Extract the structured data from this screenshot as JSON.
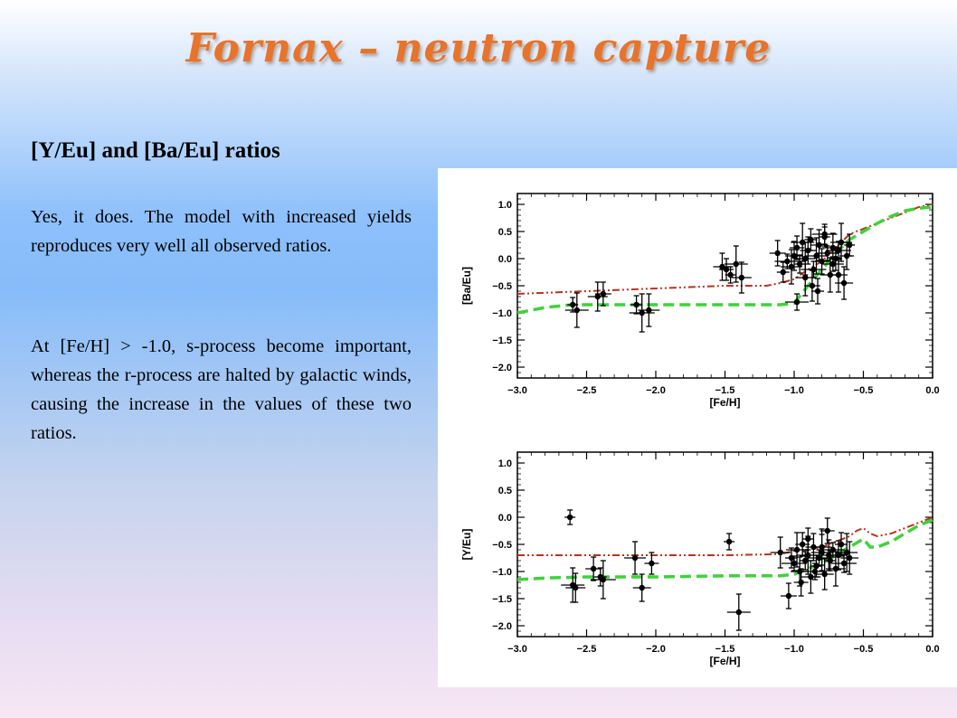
{
  "slide": {
    "title": "Fornax – neutron capture",
    "subtitle": "[Y/Eu] and [Ba/Eu] ratios",
    "paragraph_1": "Yes, it does. The model with increased yields reproduces very well all observed ratios.",
    "paragraph_2": "At [Fe/H] > -1.0, s-process become important, whereas the r-process are halted by galactic winds, causing the increase in the values of these two ratios."
  },
  "colors": {
    "title": "#e8732a",
    "model_red": "#c0301a",
    "model_green": "#3fd23a",
    "points": "#000000"
  },
  "chart_data": [
    {
      "type": "scatter",
      "xlabel": "[Fe/H]",
      "ylabel": "[Ba/Eu]",
      "xlim": [
        -3.0,
        0.0
      ],
      "ylim": [
        -2.2,
        1.2
      ],
      "xticks": [
        "−3.0",
        "−2.5",
        "−2.0",
        "−1.5",
        "−1.0",
        "−0.5",
        "0.0"
      ],
      "yticks": [
        "1.0",
        "0.5",
        "0.0",
        "−0.5",
        "−1.0",
        "−1.5",
        "−2.0"
      ],
      "ytick_values": [
        1.0,
        0.5,
        0.0,
        -0.5,
        -1.0,
        -1.5,
        -2.0
      ],
      "series": [
        {
          "style": "dash-dot",
          "color": "#c0301a",
          "x": [
            -3.0,
            -2.5,
            -2.0,
            -1.5,
            -1.2,
            -1.1,
            -1.0,
            -0.9,
            -0.8,
            -0.7,
            -0.6,
            -0.5,
            -0.4,
            -0.3,
            -0.2,
            -0.1,
            0.0
          ],
          "y": [
            -0.65,
            -0.6,
            -0.55,
            -0.5,
            -0.5,
            -0.45,
            -0.38,
            -0.2,
            -0.05,
            0.2,
            0.45,
            0.55,
            0.65,
            0.75,
            0.85,
            0.95,
            1.0
          ]
        },
        {
          "style": "dashed",
          "color": "#3fd23a",
          "x": [
            -3.0,
            -2.9,
            -2.8,
            -2.6,
            -2.0,
            -1.5,
            -1.1,
            -1.0,
            -0.9,
            -0.8,
            -0.7,
            -0.6,
            -0.5,
            -0.4,
            -0.3,
            -0.2,
            -0.1,
            0.0
          ],
          "y": [
            -1.0,
            -0.95,
            -0.9,
            -0.85,
            -0.85,
            -0.85,
            -0.85,
            -0.82,
            -0.5,
            -0.2,
            0.1,
            0.35,
            0.5,
            0.65,
            0.78,
            0.88,
            0.93,
            0.95
          ]
        },
        {
          "style": "points",
          "color": "#000000",
          "x": [
            -2.6,
            -2.57,
            -2.42,
            -2.38,
            -2.14,
            -2.1,
            -2.05,
            -1.52,
            -1.49,
            -1.46,
            -1.42,
            -1.38,
            -1.12,
            -1.08,
            -1.05,
            -1.02,
            -1.0,
            -0.98,
            -0.96,
            -0.94,
            -0.92,
            -0.9,
            -0.88,
            -0.86,
            -0.84,
            -0.82,
            -0.8,
            -0.78,
            -0.76,
            -0.74,
            -0.72,
            -0.7,
            -0.68,
            -0.66,
            -0.64,
            -0.62,
            -0.6,
            -0.98,
            -0.92,
            -0.87,
            -0.83,
            -0.78,
            -0.72,
            -0.68
          ],
          "y": [
            -0.85,
            -0.95,
            -0.7,
            -0.65,
            -0.85,
            -1.0,
            -0.95,
            -0.15,
            -0.2,
            -0.3,
            -0.1,
            -0.35,
            0.1,
            -0.25,
            -0.05,
            -0.15,
            0.05,
            0.2,
            -0.1,
            0.3,
            0.0,
            0.15,
            0.35,
            -0.2,
            0.05,
            0.25,
            -0.05,
            0.4,
            0.1,
            -0.3,
            0.2,
            0.0,
            0.15,
            0.3,
            -0.45,
            0.05,
            0.25,
            -0.8,
            -0.35,
            -0.5,
            -0.6,
            0.45,
            -0.1,
            -0.3
          ]
        }
      ]
    },
    {
      "type": "scatter",
      "xlabel": "[Fe/H]",
      "ylabel": "[Y/Eu]",
      "xlim": [
        -3.0,
        0.0
      ],
      "ylim": [
        -2.2,
        1.2
      ],
      "xticks": [
        "−3.0",
        "−2.5",
        "−2.0",
        "−1.5",
        "−1.0",
        "−0.5",
        "0.0"
      ],
      "yticks": [
        "1.0",
        "0.5",
        "0.0",
        "−0.5",
        "−1.0",
        "−1.5",
        "−2.0"
      ],
      "ytick_values": [
        1.0,
        0.5,
        0.0,
        -0.5,
        -1.0,
        -1.5,
        -2.0
      ],
      "series": [
        {
          "style": "dash-dot",
          "color": "#c0301a",
          "x": [
            -3.0,
            -2.5,
            -2.0,
            -1.5,
            -1.1,
            -1.0,
            -0.9,
            -0.8,
            -0.7,
            -0.6,
            -0.55,
            -0.5,
            -0.45,
            -0.4,
            -0.3,
            -0.2,
            -0.1,
            0.0
          ],
          "y": [
            -0.7,
            -0.7,
            -0.7,
            -0.7,
            -0.68,
            -0.62,
            -0.6,
            -0.55,
            -0.45,
            -0.35,
            -0.25,
            -0.2,
            -0.3,
            -0.35,
            -0.3,
            -0.2,
            -0.1,
            0.0
          ],
          "note": ""
        },
        {
          "style": "dashed",
          "color": "#3fd23a",
          "x": [
            -3.0,
            -2.8,
            -2.5,
            -2.0,
            -1.5,
            -1.1,
            -1.0,
            -0.9,
            -0.8,
            -0.7,
            -0.6,
            -0.5,
            -0.45,
            -0.4,
            -0.3,
            -0.2,
            -0.1,
            0.0
          ],
          "y": [
            -1.15,
            -1.12,
            -1.1,
            -1.1,
            -1.08,
            -1.08,
            -1.05,
            -0.95,
            -0.85,
            -0.7,
            -0.55,
            -0.4,
            -0.55,
            -0.55,
            -0.45,
            -0.3,
            -0.15,
            -0.05
          ]
        },
        {
          "style": "points",
          "color": "#000000",
          "x": [
            -2.62,
            -2.6,
            -2.58,
            -2.45,
            -2.4,
            -2.38,
            -2.15,
            -2.1,
            -2.03,
            -1.47,
            -1.4,
            -1.1,
            -1.04,
            -1.02,
            -1.0,
            -0.98,
            -0.96,
            -0.94,
            -0.92,
            -0.9,
            -0.88,
            -0.86,
            -0.84,
            -0.82,
            -0.8,
            -0.78,
            -0.76,
            -0.74,
            -0.72,
            -0.7,
            -0.68,
            -0.66,
            -0.64,
            -0.62,
            -0.6,
            -0.95,
            -0.9,
            -0.85,
            -0.8,
            -0.75
          ],
          "y": [
            0.0,
            -1.25,
            -1.3,
            -0.95,
            -1.1,
            -1.15,
            -0.75,
            -1.3,
            -0.85,
            -0.45,
            -1.75,
            -0.65,
            -1.45,
            -0.75,
            -0.85,
            -0.6,
            -1.0,
            -0.5,
            -0.8,
            -0.7,
            -1.1,
            -0.55,
            -0.9,
            -0.75,
            -0.65,
            -1.05,
            -0.25,
            -0.8,
            -0.6,
            -0.95,
            -0.7,
            -0.5,
            -0.85,
            -0.65,
            -0.75,
            -1.2,
            -0.4,
            -1.0,
            -0.55,
            -0.7
          ]
        }
      ]
    }
  ]
}
